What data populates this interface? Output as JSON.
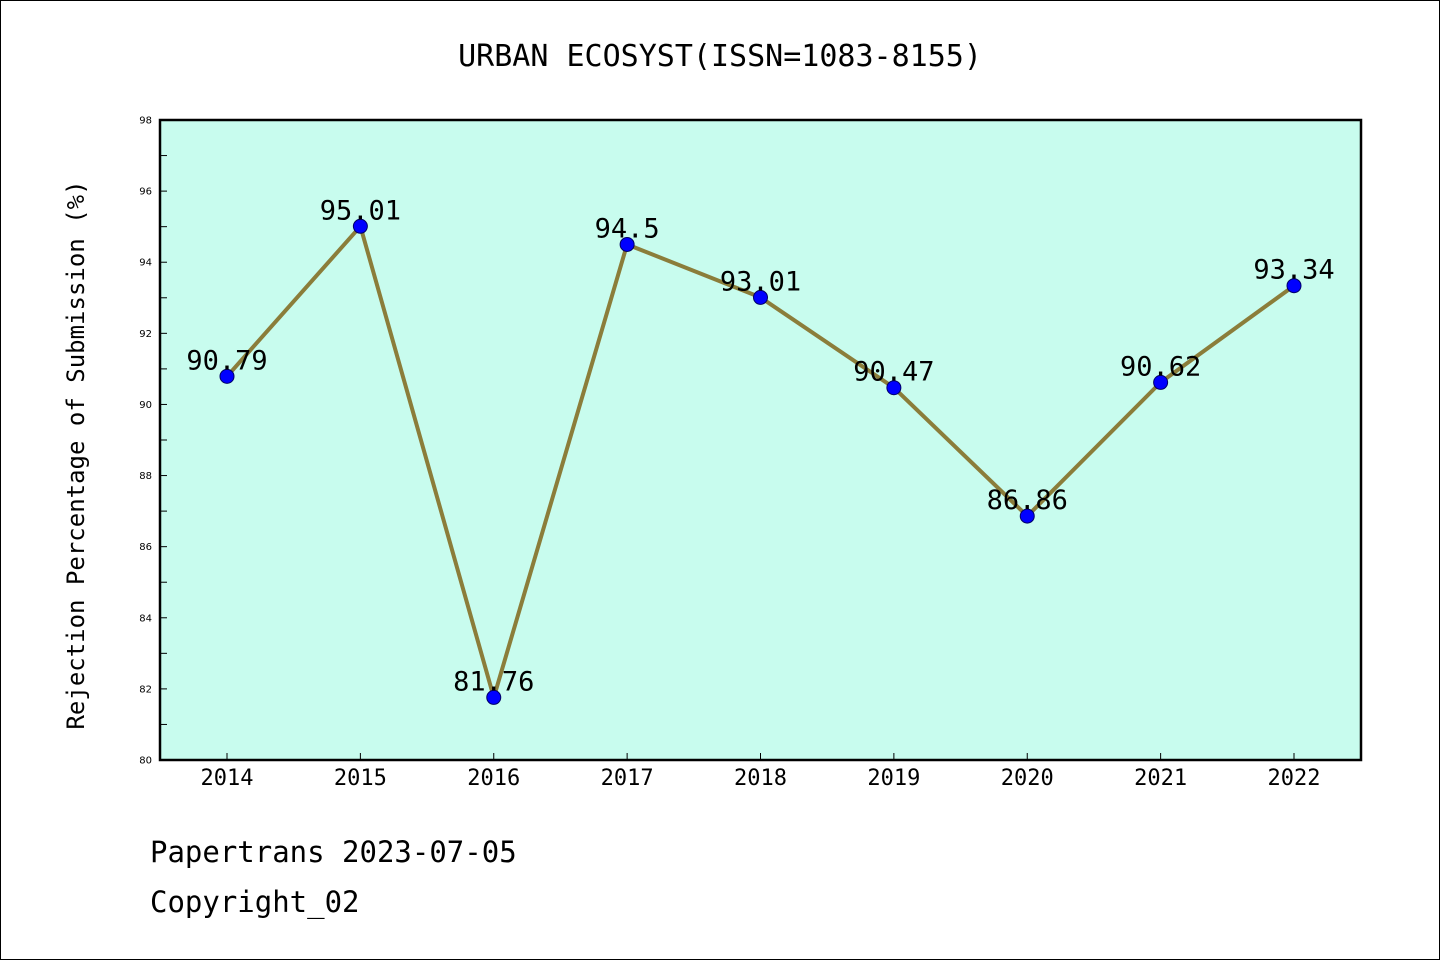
{
  "chart_data": {
    "type": "line",
    "title": "URBAN ECOSYST(ISSN=1083-8155)",
    "xlabel": "",
    "ylabel": "Rejection Percentage of Submission (%)",
    "categories": [
      "2014",
      "2015",
      "2016",
      "2017",
      "2018",
      "2019",
      "2020",
      "2021",
      "2022"
    ],
    "series": [
      {
        "values": [
          90.79,
          95.01,
          81.76,
          94.5,
          93.01,
          90.47,
          86.86,
          90.62,
          93.34
        ]
      }
    ],
    "data_labels": [
      "90.79",
      "95.01",
      "81.76",
      "94.5",
      "93.01",
      "90.47",
      "86.86",
      "90.62",
      "93.34"
    ],
    "ylim": [
      80,
      98
    ],
    "yticks": [
      80,
      82,
      84,
      86,
      88,
      90,
      92,
      94,
      96,
      98
    ],
    "grid": false,
    "legend": "none",
    "colors": {
      "plot_background": "#c8fcee",
      "line": "#8b7d3a",
      "marker_fill": "#0000ff",
      "marker_edge": "#000066"
    }
  },
  "footer": {
    "line1": "Papertrans 2023-07-05",
    "line2": "Copyright_02"
  }
}
